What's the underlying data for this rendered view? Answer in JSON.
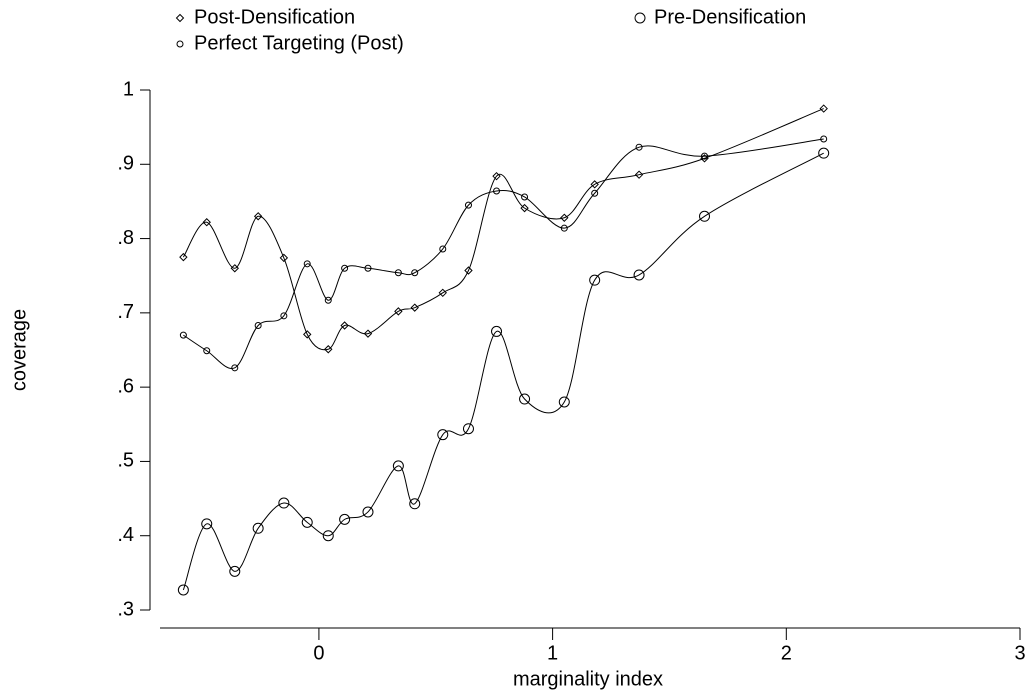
{
  "chart_data": {
    "type": "line",
    "x_label": "marginality index",
    "y_label": "coverage",
    "x": [
      -0.58,
      -0.48,
      -0.36,
      -0.26,
      -0.15,
      -0.05,
      0.04,
      0.11,
      0.21,
      0.34,
      0.41,
      0.53,
      0.64,
      0.76,
      0.88,
      1.05,
      1.18,
      1.37,
      1.65,
      2.16
    ],
    "series": [
      {
        "name": "Post-Densification",
        "color": "#000000",
        "marker": "diamond",
        "values": [
          0.775,
          0.822,
          0.76,
          0.83,
          0.774,
          0.671,
          0.651,
          0.683,
          0.672,
          0.702,
          0.707,
          0.727,
          0.757,
          0.884,
          0.841,
          0.828,
          0.873,
          0.886,
          0.908,
          0.975
        ]
      },
      {
        "name": "Pre-Densification",
        "color": "#000000",
        "marker": "circle",
        "values": [
          0.327,
          0.416,
          0.352,
          0.41,
          0.444,
          0.418,
          0.4,
          0.422,
          0.432,
          0.494,
          0.443,
          0.536,
          0.544,
          0.675,
          0.584,
          0.58,
          0.744,
          0.751,
          0.83,
          0.915
        ]
      },
      {
        "name": "Perfect Targeting (Post)",
        "color": "#000000",
        "marker": "small-circle",
        "values": [
          0.67,
          0.649,
          0.626,
          0.683,
          0.696,
          0.766,
          0.717,
          0.76,
          0.76,
          0.754,
          0.754,
          0.786,
          0.845,
          0.864,
          0.856,
          0.814,
          0.861,
          0.923,
          0.911,
          0.934
        ]
      }
    ],
    "xlim": [
      -0.68,
      3
    ],
    "ylim": [
      0.3,
      1
    ],
    "xticks": [
      0,
      1,
      2,
      3
    ],
    "yticks": [
      {
        "value": 0.3,
        "label": ".3"
      },
      {
        "value": 0.4,
        "label": ".4"
      },
      {
        "value": 0.5,
        "label": ".5"
      },
      {
        "value": 0.6,
        "label": ".6"
      },
      {
        "value": 0.7,
        "label": ".7"
      },
      {
        "value": 0.8,
        "label": ".8"
      },
      {
        "value": 0.9,
        "label": ".9"
      },
      1
    ],
    "legend": "top"
  }
}
